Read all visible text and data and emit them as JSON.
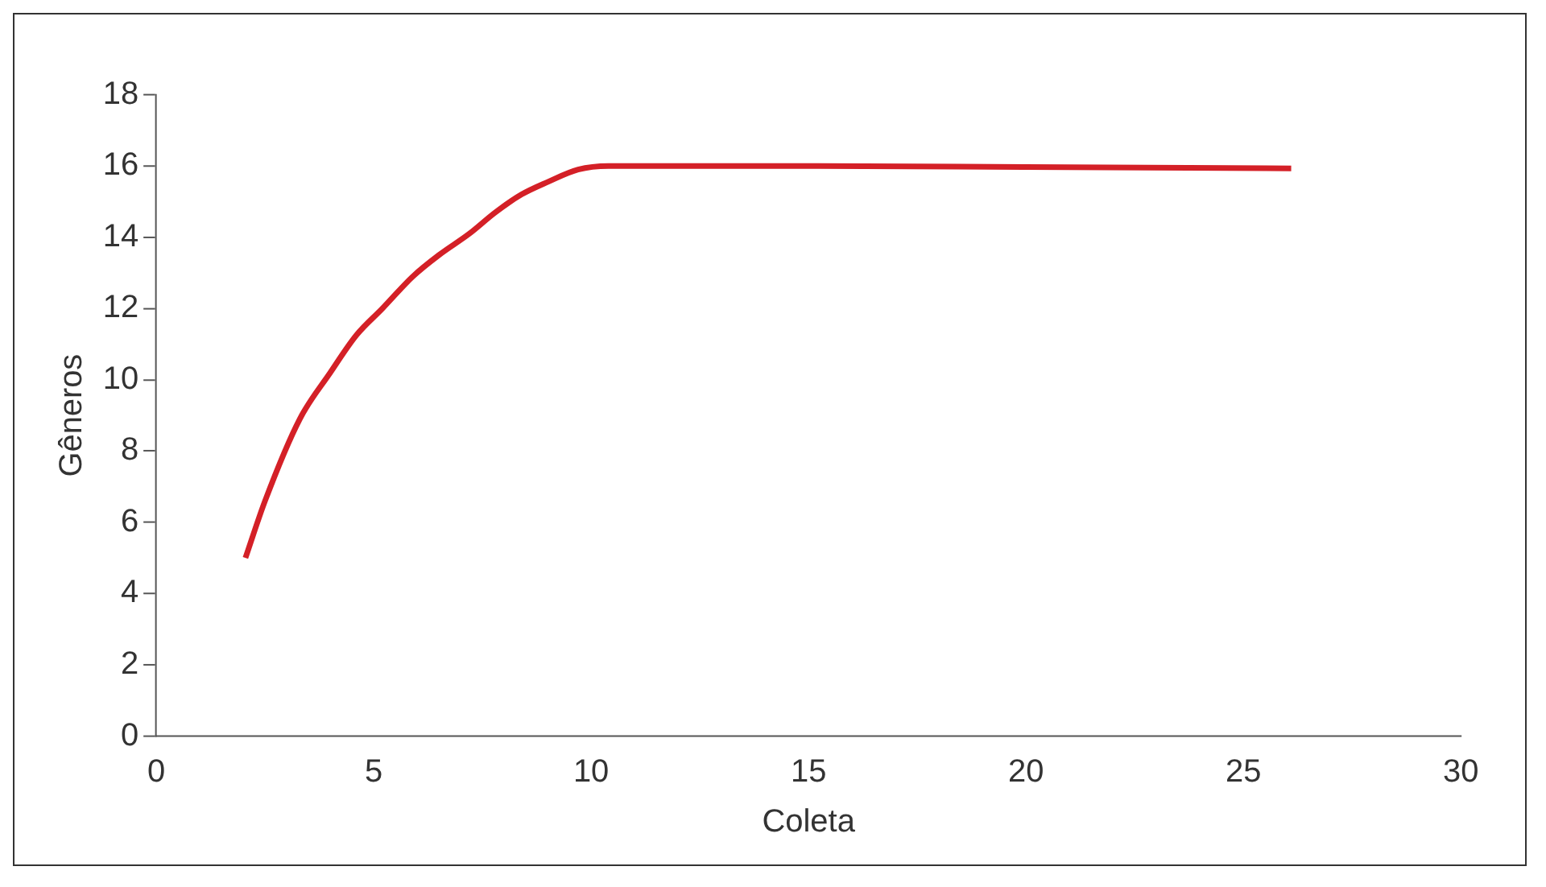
{
  "chart_data": {
    "type": "line",
    "xlabel": "Coleta",
    "ylabel": "Gêneros",
    "series": [
      {
        "color": "#d42027",
        "x": [
          2.05,
          2.5,
          3.3,
          4,
          4.6,
          5.2,
          5.9,
          6.5,
          7.2,
          7.8,
          8.4,
          9,
          9.7,
          10.4,
          15,
          20,
          26.1
        ],
        "values": [
          5,
          6.6,
          8.9,
          10.2,
          11.25,
          12,
          12.9,
          13.5,
          14.1,
          14.7,
          15.2,
          15.55,
          15.9,
          16,
          16,
          15.97,
          15.93
        ]
      }
    ],
    "xlim": [
      0,
      30
    ],
    "xticks": [
      0,
      5,
      10,
      15,
      20,
      25,
      30
    ],
    "ylim": [
      0,
      18
    ],
    "yticks": [
      0,
      2,
      4,
      6,
      8,
      10,
      12,
      14,
      16,
      18
    ],
    "grid": false,
    "legend": false,
    "marker": "none",
    "line_style": "solid"
  }
}
